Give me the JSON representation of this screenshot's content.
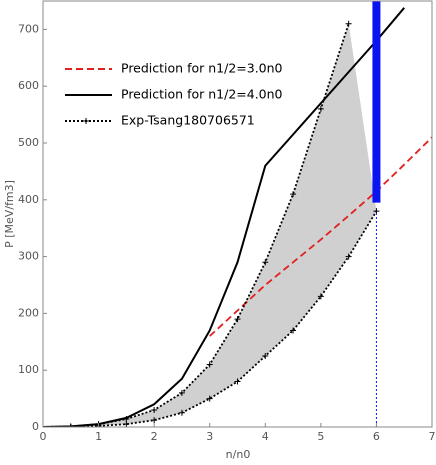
{
  "chart_data": {
    "type": "line",
    "xlabel": "n/n0",
    "ylabel": "P [MeV/fm3]",
    "xlim": [
      0,
      7
    ],
    "ylim": [
      0,
      750
    ],
    "xticks": [
      0,
      1,
      2,
      3,
      4,
      5,
      6,
      7
    ],
    "yticks": [
      0,
      100,
      200,
      300,
      400,
      500,
      600,
      700
    ],
    "legend": "upper-left",
    "x": [
      0,
      0.5,
      1,
      1.5,
      2,
      2.5,
      3,
      3.5,
      4,
      4.5,
      5,
      5.5,
      6,
      6.5,
      7
    ],
    "series": [
      {
        "name": "Prediction for n1/2=3.0n0",
        "color": "#e32020",
        "style": "dashed",
        "values": [
          null,
          null,
          null,
          null,
          null,
          null,
          160,
          205,
          250,
          290,
          330,
          372,
          415,
          462,
          510
        ]
      },
      {
        "name": "Prediction for n1/2=4.0n0",
        "color": "#000000",
        "style": "solid",
        "values": [
          0,
          1,
          5,
          16,
          40,
          85,
          170,
          290,
          460,
          515,
          570,
          625,
          680,
          738,
          null
        ]
      },
      {
        "name": "Exp-Tsang180706571",
        "color": "#000000",
        "style": "dotted",
        "fill": "#d0d0d0",
        "values": [
          0,
          1,
          5,
          14,
          30,
          60,
          110,
          190,
          290,
          410,
          560,
          710,
          null,
          null,
          null
        ],
        "lower": [
          0,
          0,
          2,
          5,
          12,
          25,
          50,
          80,
          125,
          170,
          230,
          300,
          380,
          null,
          null
        ]
      }
    ],
    "range_bar": {
      "x": 6,
      "low": 395,
      "high": 750,
      "color": "#0a14f0"
    }
  }
}
